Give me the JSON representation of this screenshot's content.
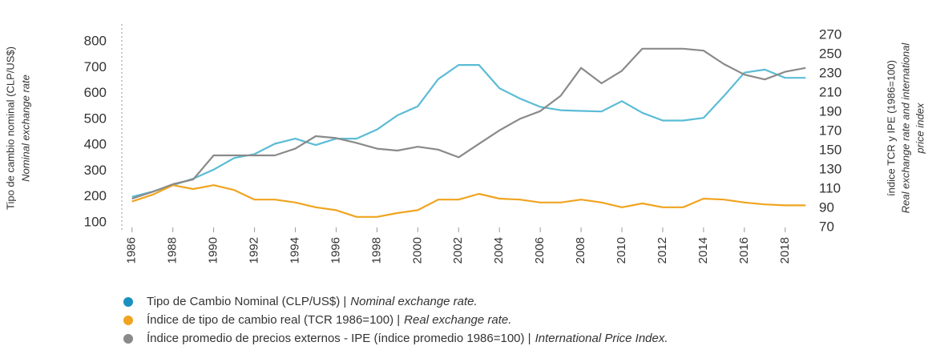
{
  "chart_data": {
    "type": "line",
    "ylabel": [
      "Tipo de cambio nominal (CLP/US$)",
      "Nominal exchange rate"
    ],
    "y2label": [
      "índice TCR y IPE (1986=100)",
      "Real exchange rate and international",
      "price index"
    ],
    "x": [
      1986,
      1987,
      1988,
      1989,
      1990,
      1991,
      1992,
      1993,
      1994,
      1995,
      1996,
      1997,
      1998,
      1999,
      2000,
      2001,
      2002,
      2003,
      2004,
      2005,
      2006,
      2007,
      2008,
      2009,
      2010,
      2011,
      2012,
      2013,
      2014,
      2015,
      2016,
      2017,
      2018,
      2019
    ],
    "xlim": [
      1985.5,
      2019.5
    ],
    "xticks": [
      1986,
      1988,
      1990,
      1992,
      1994,
      1996,
      1998,
      2000,
      2002,
      2004,
      2006,
      2008,
      2010,
      2012,
      2014,
      2016,
      2018
    ],
    "ylim": [
      100,
      800
    ],
    "yticks": [
      100,
      200,
      300,
      400,
      500,
      600,
      700,
      800
    ],
    "y2lim": [
      70,
      270
    ],
    "y2ticks": [
      70,
      90,
      110,
      130,
      150,
      170,
      190,
      210,
      230,
      250,
      270
    ],
    "series": [
      {
        "name": "Tipo de Cambio Nominal (CLP/US$) |",
        "name_en": "Nominal exchange rate.",
        "color": "#5bbcd6",
        "legend_color": "#1a90bf",
        "axis": "y",
        "values": [
          200,
          220,
          245,
          270,
          305,
          350,
          365,
          405,
          425,
          400,
          425,
          425,
          460,
          515,
          550,
          655,
          710,
          710,
          620,
          580,
          548,
          535,
          532,
          530,
          570,
          525,
          495,
          495,
          505,
          590,
          680,
          692,
          660,
          660
        ]
      },
      {
        "name": "Índice de tipo de cambio real (TCR 1986=100) |",
        "name_en": "Real exchange rate.",
        "color": "#f0a420",
        "legend_color": "#f0a420",
        "axis": "y2",
        "values": [
          97,
          104,
          114,
          110,
          114,
          109,
          99,
          99,
          96,
          91,
          88,
          81,
          81,
          85,
          88,
          99,
          99,
          105,
          100,
          99,
          96,
          96,
          99,
          96,
          91,
          95,
          91,
          91,
          100,
          99,
          96,
          94,
          93,
          93
        ]
      },
      {
        "name": "Índice promedio de precios externos - IPE (índice promedio 1986=100) |",
        "name_en": "International Price Index.",
        "color": "#8a8a8a",
        "legend_color": "#8a8a8a",
        "axis": "y2",
        "values": [
          100,
          107,
          115,
          120,
          145,
          145,
          145,
          145,
          152,
          165,
          163,
          158,
          152,
          150,
          154,
          151,
          143,
          157,
          171,
          183,
          191,
          207,
          236,
          220,
          233,
          256,
          256,
          256,
          254,
          240,
          229,
          224,
          232,
          236
        ]
      }
    ]
  }
}
